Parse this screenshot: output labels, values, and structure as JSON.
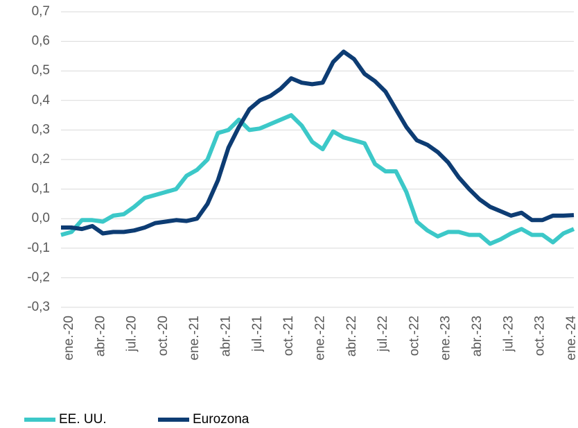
{
  "chart_data": {
    "type": "line",
    "categories": [
      "ene.-20",
      null,
      null,
      "abr.-20",
      null,
      null,
      "jul.-20",
      null,
      null,
      "oct.-20",
      null,
      null,
      "ene.-21",
      null,
      null,
      "abr.-21",
      null,
      null,
      "jul.-21",
      null,
      null,
      "oct.-21",
      null,
      null,
      "ene.-22",
      null,
      null,
      "abr.-22",
      null,
      null,
      "jul.-22",
      null,
      null,
      "oct.-22",
      null,
      null,
      "ene.-23",
      null,
      null,
      "abr.-23",
      null,
      null,
      "jul.-23",
      null,
      null,
      "oct.-23",
      null,
      null,
      "ene.-24",
      null
    ],
    "series": [
      {
        "name": "EE. UU.",
        "color": "#3cc8c8",
        "values": [
          -0.055,
          -0.045,
          -0.005,
          -0.005,
          -0.01,
          0.01,
          0.015,
          0.04,
          0.07,
          0.08,
          0.09,
          0.1,
          0.145,
          0.165,
          0.2,
          0.29,
          0.3,
          0.335,
          0.3,
          0.305,
          0.32,
          0.335,
          0.35,
          0.315,
          0.26,
          0.235,
          0.295,
          0.275,
          0.265,
          0.255,
          0.185,
          0.16,
          0.16,
          0.09,
          -0.01,
          -0.04,
          -0.06,
          -0.045,
          -0.045,
          -0.055,
          -0.055,
          -0.085,
          -0.07,
          -0.05,
          -0.035,
          -0.055,
          -0.055,
          -0.08,
          -0.05,
          -0.035
        ]
      },
      {
        "name": "Eurozona",
        "color": "#0d3c73",
        "values": [
          -0.03,
          -0.03,
          -0.035,
          -0.025,
          -0.05,
          -0.045,
          -0.045,
          -0.04,
          -0.03,
          -0.015,
          -0.01,
          -0.005,
          -0.008,
          0.0,
          0.05,
          0.13,
          0.24,
          0.31,
          0.37,
          0.4,
          0.415,
          0.44,
          0.475,
          0.46,
          0.455,
          0.46,
          0.53,
          0.565,
          0.54,
          0.49,
          0.465,
          0.43,
          0.37,
          0.31,
          0.265,
          0.25,
          0.225,
          0.19,
          0.14,
          0.1,
          0.065,
          0.04,
          0.025,
          0.01,
          0.02,
          -0.005,
          -0.005,
          0.01,
          0.01,
          0.012
        ]
      }
    ],
    "ylim": [
      -0.3,
      0.7
    ],
    "yticks": [
      {
        "value": -0.3,
        "label": "-0,3"
      },
      {
        "value": -0.2,
        "label": "-0,2"
      },
      {
        "value": -0.1,
        "label": "-0,1"
      },
      {
        "value": 0,
        "label": "0,0"
      },
      {
        "value": 0.1,
        "label": "0,1"
      },
      {
        "value": 0.2,
        "label": "0,2"
      },
      {
        "value": 0.3,
        "label": "0,3"
      },
      {
        "value": 0.4,
        "label": "0,4"
      },
      {
        "value": 0.5,
        "label": "0,5"
      },
      {
        "value": 0.6,
        "label": "0,6"
      },
      {
        "value": 0.7,
        "label": "0,7"
      }
    ],
    "grid": true,
    "legend": "bottom"
  }
}
